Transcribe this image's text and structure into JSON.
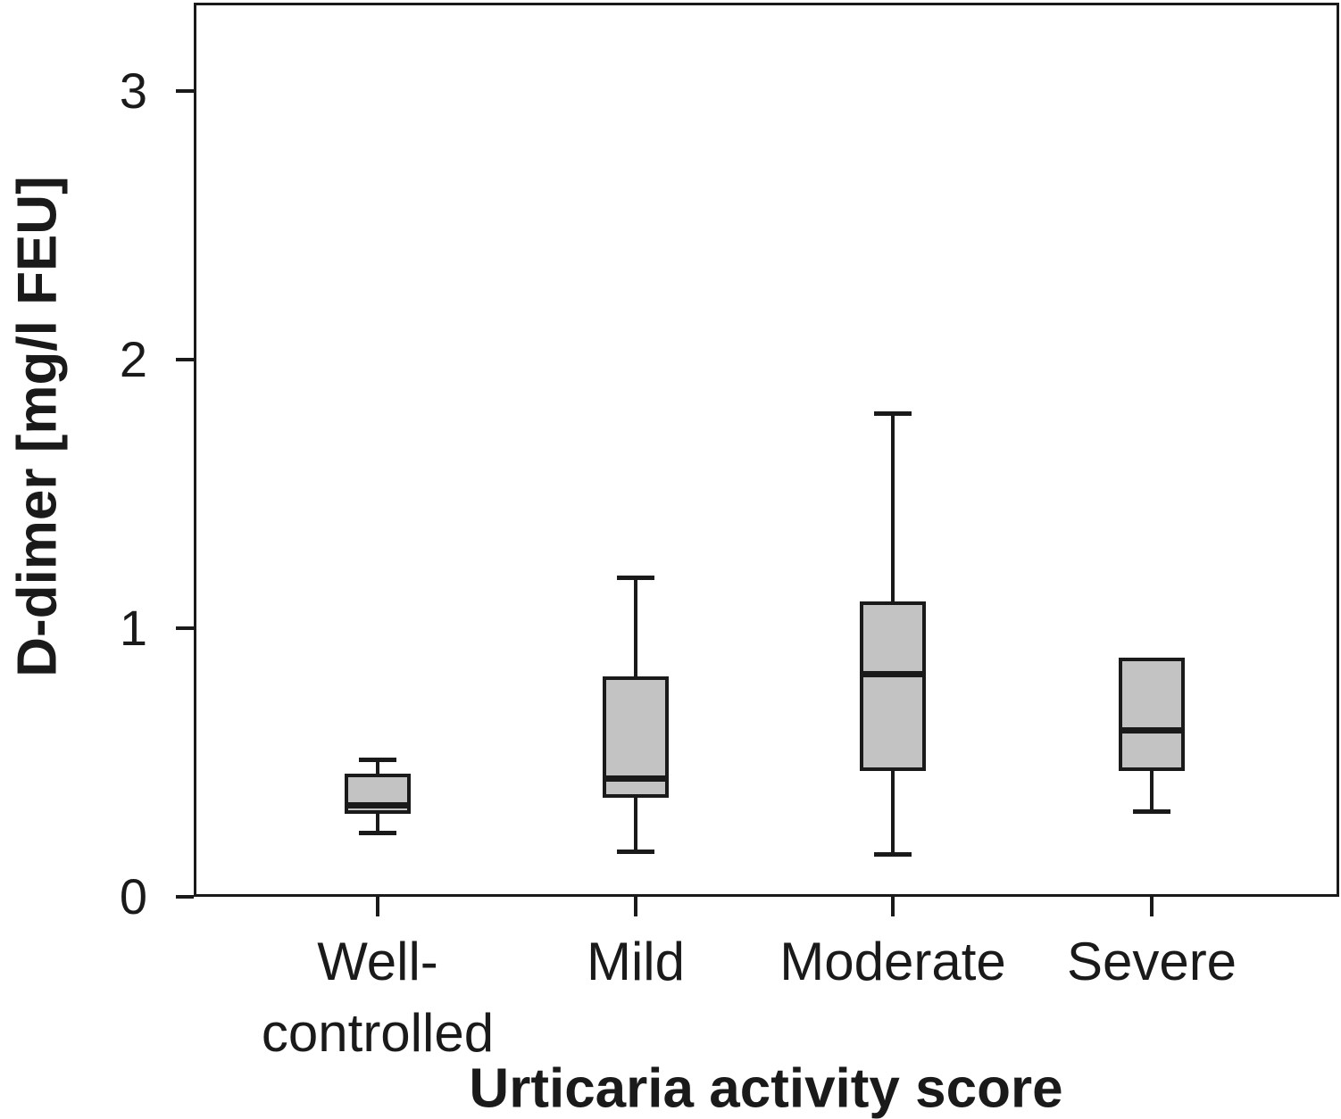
{
  "chart_data": {
    "type": "box",
    "title": "",
    "xlabel": "Urticaria activity score",
    "ylabel": "D-dimer [mg/l FEU]",
    "ylim": [
      0,
      3.33
    ],
    "yticks": [
      "0",
      "1",
      "2",
      "3"
    ],
    "grid": false,
    "legend": false,
    "categories": [
      {
        "name": "Well-controlled",
        "label_lines": [
          "Well-",
          "controlled"
        ]
      },
      {
        "name": "Mild",
        "label_lines": [
          "Mild"
        ]
      },
      {
        "name": "Moderate",
        "label_lines": [
          "Moderate"
        ]
      },
      {
        "name": "Severe",
        "label_lines": [
          "Severe"
        ]
      }
    ],
    "series": [
      {
        "name": "Well-controlled",
        "whisker_low": 0.24,
        "q1": 0.31,
        "median": 0.34,
        "q3": 0.46,
        "whisker_high": 0.51
      },
      {
        "name": "Mild",
        "whisker_low": 0.17,
        "q1": 0.37,
        "median": 0.44,
        "q3": 0.82,
        "whisker_high": 1.19
      },
      {
        "name": "Moderate",
        "whisker_low": 0.16,
        "q1": 0.47,
        "median": 0.83,
        "q3": 1.1,
        "whisker_high": 1.8
      },
      {
        "name": "Severe",
        "whisker_low": 0.32,
        "q1": 0.47,
        "median": 0.62,
        "q3": 0.89,
        "whisker_high": null
      }
    ],
    "colors": {
      "box_fill": "#c3c3c3",
      "line": "#1a1a1a",
      "background": "#ffffff"
    }
  }
}
